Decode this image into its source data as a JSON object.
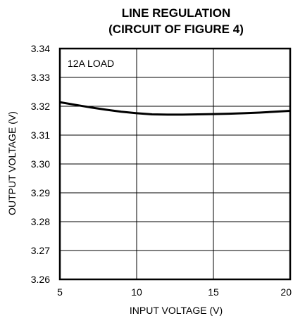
{
  "chart_data": {
    "type": "line",
    "title_lines": [
      "LINE REGULATION",
      "(CIRCUIT OF FIGURE 4)"
    ],
    "xlabel": "INPUT VOLTAGE (V)",
    "ylabel": "OUTPUT VOLTAGE (V)",
    "xlim": [
      5,
      20
    ],
    "ylim": [
      3.26,
      3.34
    ],
    "x_ticks": [
      5,
      10,
      15,
      20
    ],
    "x_tick_labels": [
      "5",
      "10",
      "15",
      "20"
    ],
    "y_ticks": [
      3.26,
      3.27,
      3.28,
      3.29,
      3.3,
      3.31,
      3.32,
      3.33,
      3.34
    ],
    "y_tick_labels": [
      "3.26",
      "3.27",
      "3.28",
      "3.29",
      "3.30",
      "3.31",
      "3.32",
      "3.33",
      "3.34"
    ],
    "grid": true,
    "annotation": "12A LOAD",
    "series": [
      {
        "x": [
          5,
          6,
          7,
          8,
          9,
          10,
          11,
          12,
          13,
          14,
          15,
          16,
          17,
          18,
          19,
          20
        ],
        "y": [
          3.3214,
          3.3205,
          3.3196,
          3.3188,
          3.3181,
          3.3176,
          3.3172,
          3.3171,
          3.3171,
          3.3172,
          3.3173,
          3.3174,
          3.3176,
          3.3178,
          3.3181,
          3.3184
        ],
        "color": "#000000"
      }
    ]
  }
}
